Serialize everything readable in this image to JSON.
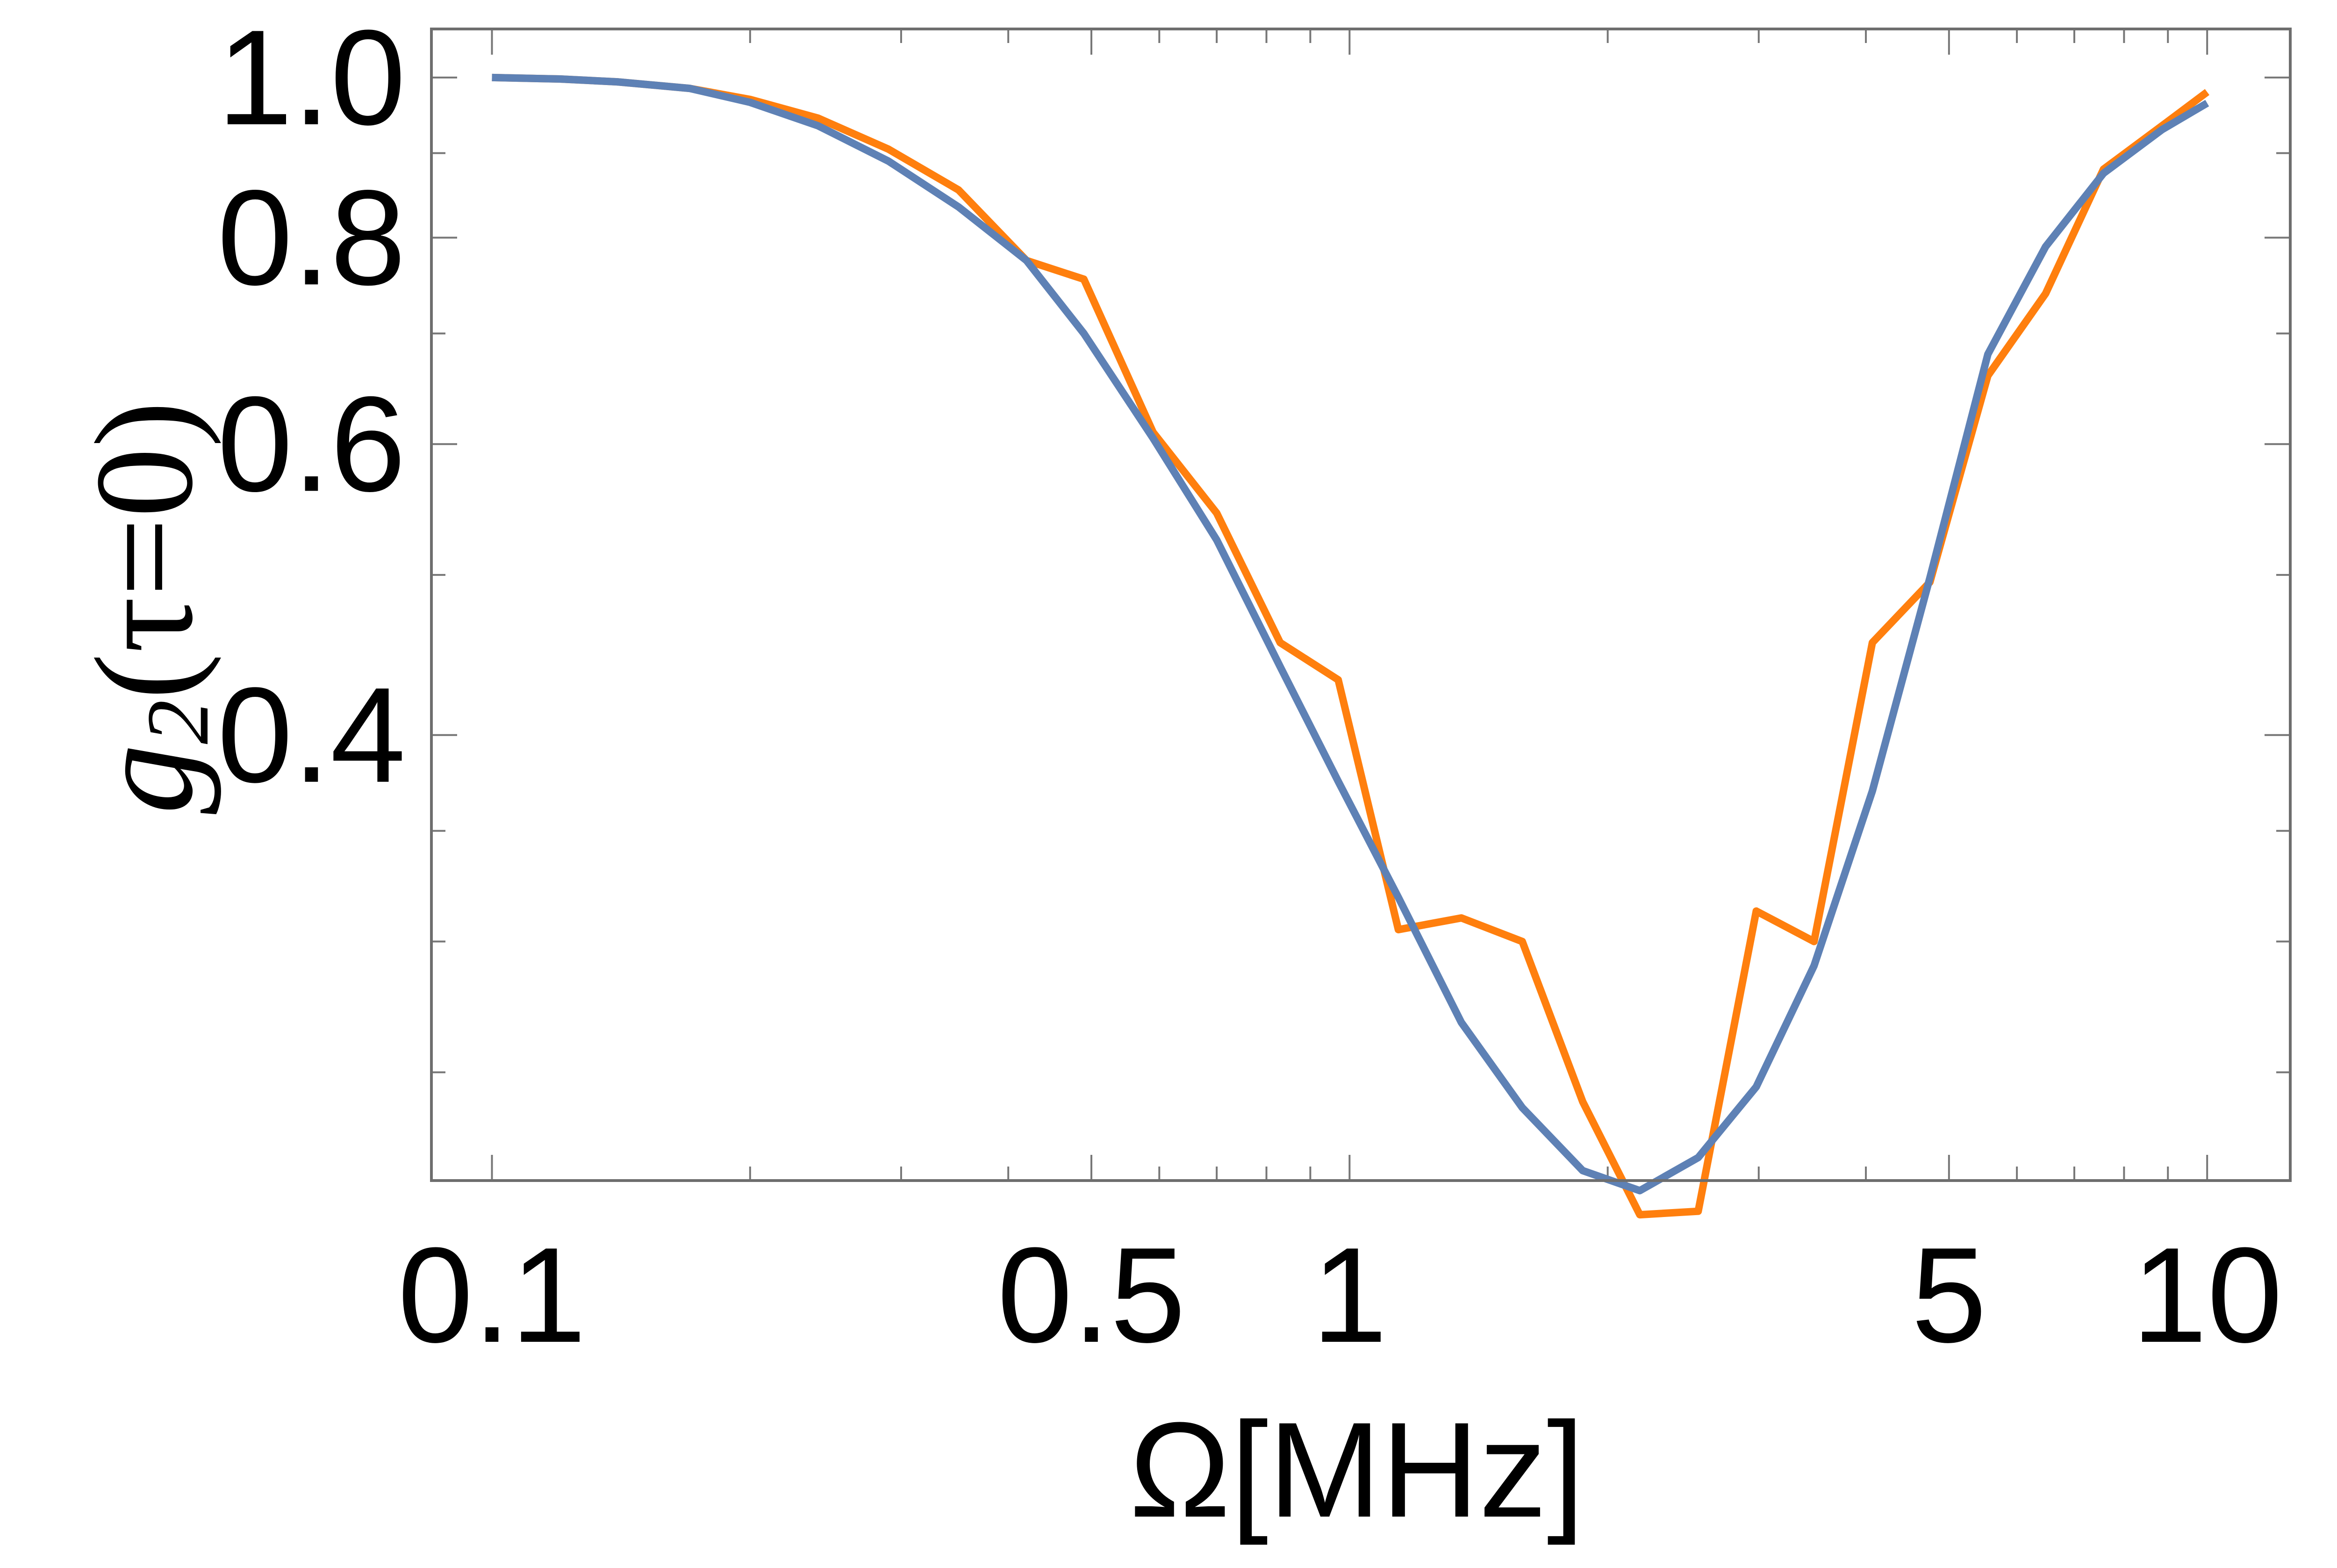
{
  "chart_data": {
    "type": "line",
    "xscale": "log",
    "yscale": "log",
    "xlim": [
      0.085,
      12.5
    ],
    "ylim": [
      0.215,
      1.07
    ],
    "xticks": [
      {
        "value": 0.1,
        "label": "0.1"
      },
      {
        "value": 0.5,
        "label": "0.5"
      },
      {
        "value": 1,
        "label": "1"
      },
      {
        "value": 5,
        "label": "5"
      },
      {
        "value": 10,
        "label": "10"
      }
    ],
    "yticks": [
      {
        "value": 0.4,
        "label": "0.4"
      },
      {
        "value": 0.6,
        "label": "0.6"
      },
      {
        "value": 0.8,
        "label": "0.8"
      },
      {
        "value": 1.0,
        "label": "1.0"
      }
    ],
    "xlabel": "Ω[MHz]",
    "ylabel": {
      "main": "g",
      "sub": "2",
      "rest": "(τ=0)"
    },
    "series": [
      {
        "color": "#ff7f0e",
        "x": [
          0.1,
          0.12,
          0.14,
          0.17,
          0.2,
          0.24,
          0.29,
          0.35,
          0.42,
          0.49,
          0.59,
          0.7,
          0.83,
          0.97,
          1.14,
          1.35,
          1.59,
          1.87,
          2.18,
          2.55,
          2.98,
          3.48,
          4.07,
          4.75,
          5.55,
          6.48,
          7.57,
          8.86,
          10.0
        ],
        "y": [
          1.0,
          0.998,
          0.994,
          0.985,
          0.97,
          0.945,
          0.905,
          0.855,
          0.775,
          0.755,
          0.61,
          0.545,
          0.455,
          0.432,
          0.305,
          0.31,
          0.3,
          0.24,
          0.205,
          0.206,
          0.313,
          0.3,
          0.455,
          0.495,
          0.66,
          0.74,
          0.88,
          0.935,
          0.98
        ]
      },
      {
        "color": "#5e81b5",
        "x": [
          0.1,
          0.12,
          0.14,
          0.17,
          0.2,
          0.24,
          0.29,
          0.35,
          0.42,
          0.49,
          0.59,
          0.7,
          0.83,
          0.97,
          1.14,
          1.35,
          1.59,
          1.87,
          2.18,
          2.55,
          2.98,
          3.48,
          4.07,
          4.75,
          5.55,
          6.48,
          7.57,
          8.86,
          10.0
        ],
        "y": [
          1.0,
          0.998,
          0.994,
          0.985,
          0.966,
          0.935,
          0.89,
          0.835,
          0.775,
          0.7,
          0.605,
          0.525,
          0.44,
          0.375,
          0.319,
          0.268,
          0.238,
          0.218,
          0.212,
          0.222,
          0.245,
          0.29,
          0.37,
          0.498,
          0.68,
          0.79,
          0.875,
          0.93,
          0.965
        ]
      }
    ]
  }
}
